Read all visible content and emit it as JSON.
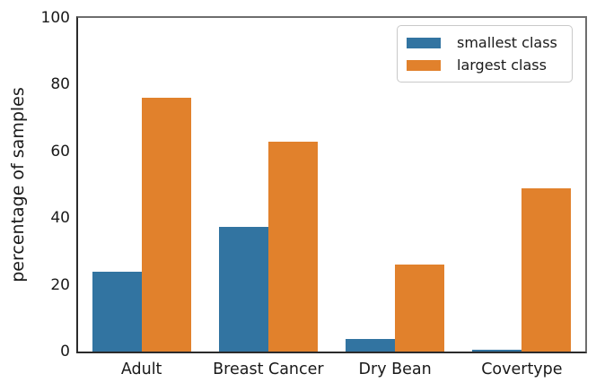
{
  "chart_data": {
    "type": "bar",
    "title": "",
    "categories": [
      "Adult",
      "Breast Cancer",
      "Dry Bean",
      "Covertype"
    ],
    "series": [
      {
        "name": "smallest class",
        "color": "#3274a1",
        "values": [
          24,
          37.3,
          3.8,
          0.5
        ]
      },
      {
        "name": "largest class",
        "color": "#e1812c",
        "values": [
          76,
          63,
          26,
          49
        ]
      }
    ],
    "xlabel": "",
    "ylabel": "percentage of samples",
    "yticks": [
      0,
      20,
      40,
      60,
      80,
      100
    ],
    "ylim": [
      0,
      100
    ],
    "grid": false,
    "legend_position": "upper right"
  },
  "colors": {
    "background": "#ffffff",
    "axis_line": "#2b2b2b",
    "tick_text": "#1a1a1a",
    "legend_border": "#c9c9c9",
    "series_smallest": "#3274a1",
    "series_largest": "#e1812c"
  }
}
